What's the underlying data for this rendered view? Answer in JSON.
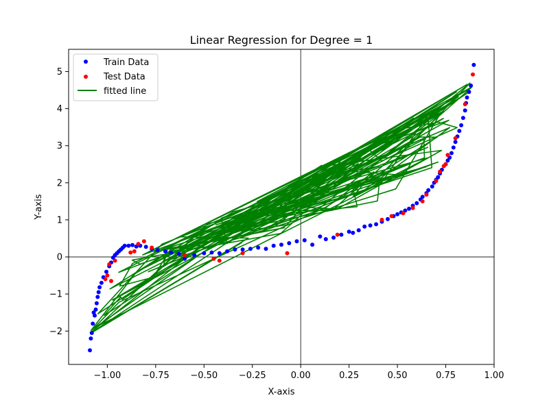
{
  "chart_data": {
    "type": "scatter",
    "title": "Linear Regression for Degree = 1",
    "xlabel": "X-axis",
    "ylabel": "Y-axis",
    "xlim": [
      -1.2,
      1.0
    ],
    "ylim": [
      -2.9,
      5.6
    ],
    "xticks": [
      -1.0,
      -0.75,
      -0.5,
      -0.25,
      0.0,
      0.25,
      0.5,
      0.75,
      1.0
    ],
    "xtick_labels": [
      "−1.00",
      "−0.75",
      "−0.50",
      "−0.25",
      "0.00",
      "0.25",
      "0.50",
      "0.75",
      "1.00"
    ],
    "yticks": [
      -2,
      -1,
      0,
      1,
      2,
      3,
      4,
      5
    ],
    "ytick_labels": [
      "−2",
      "−1",
      "0",
      "1",
      "2",
      "3",
      "4",
      "5"
    ],
    "grid": false,
    "reference_lines": {
      "x": 0,
      "y": 0
    },
    "legend": {
      "placement": "top-left",
      "entries": [
        "Train Data",
        "Test Data",
        "fitted line"
      ]
    },
    "series": [
      {
        "name": "Train Data",
        "kind": "scatter",
        "color": "#0000ff",
        "points": [
          [
            -1.09,
            -2.52
          ],
          [
            -1.085,
            -2.2
          ],
          [
            -1.08,
            -2.05
          ],
          [
            -1.075,
            -1.8
          ],
          [
            -1.07,
            -1.5
          ],
          [
            -1.065,
            -1.58
          ],
          [
            -1.06,
            -1.42
          ],
          [
            -1.055,
            -1.25
          ],
          [
            -1.05,
            -1.08
          ],
          [
            -1.045,
            -0.95
          ],
          [
            -1.04,
            -0.82
          ],
          [
            -1.03,
            -0.7
          ],
          [
            -1.02,
            -0.55
          ],
          [
            -1.005,
            -0.4
          ],
          [
            -0.99,
            -0.25
          ],
          [
            -0.98,
            -0.15
          ],
          [
            -0.97,
            -0.02
          ],
          [
            -0.96,
            0.05
          ],
          [
            -0.95,
            0.1
          ],
          [
            -0.94,
            0.15
          ],
          [
            -0.93,
            0.2
          ],
          [
            -0.92,
            0.25
          ],
          [
            -0.91,
            0.3
          ],
          [
            -0.89,
            0.3
          ],
          [
            -0.87,
            0.32
          ],
          [
            -0.85,
            0.28
          ],
          [
            -0.83,
            0.3
          ],
          [
            -0.8,
            0.27
          ],
          [
            -0.77,
            0.22
          ],
          [
            -0.74,
            0.18
          ],
          [
            -0.7,
            0.15
          ],
          [
            -0.67,
            0.12
          ],
          [
            -0.63,
            0.08
          ],
          [
            -0.6,
            -0.05
          ],
          [
            -0.55,
            0.05
          ],
          [
            -0.5,
            0.1
          ],
          [
            -0.46,
            0.12
          ],
          [
            -0.42,
            0.1
          ],
          [
            -0.38,
            0.15
          ],
          [
            -0.34,
            0.2
          ],
          [
            -0.3,
            0.2
          ],
          [
            -0.26,
            0.22
          ],
          [
            -0.22,
            0.25
          ],
          [
            -0.18,
            0.22
          ],
          [
            -0.14,
            0.3
          ],
          [
            -0.1,
            0.33
          ],
          [
            -0.06,
            0.37
          ],
          [
            -0.02,
            0.42
          ],
          [
            0.02,
            0.45
          ],
          [
            0.06,
            0.33
          ],
          [
            0.1,
            0.55
          ],
          [
            0.13,
            0.48
          ],
          [
            0.17,
            0.52
          ],
          [
            0.21,
            0.6
          ],
          [
            0.25,
            0.68
          ],
          [
            0.27,
            0.65
          ],
          [
            0.3,
            0.72
          ],
          [
            0.33,
            0.82
          ],
          [
            0.36,
            0.85
          ],
          [
            0.39,
            0.88
          ],
          [
            0.42,
            0.95
          ],
          [
            0.45,
            1.02
          ],
          [
            0.48,
            1.1
          ],
          [
            0.5,
            1.15
          ],
          [
            0.52,
            1.2
          ],
          [
            0.54,
            1.25
          ],
          [
            0.56,
            1.3
          ],
          [
            0.58,
            1.38
          ],
          [
            0.6,
            1.45
          ],
          [
            0.62,
            1.55
          ],
          [
            0.63,
            1.62
          ],
          [
            0.65,
            1.72
          ],
          [
            0.66,
            1.8
          ],
          [
            0.68,
            1.9
          ],
          [
            0.69,
            2.0
          ],
          [
            0.7,
            2.08
          ],
          [
            0.71,
            2.15
          ],
          [
            0.72,
            2.25
          ],
          [
            0.73,
            2.35
          ],
          [
            0.75,
            2.5
          ],
          [
            0.76,
            2.6
          ],
          [
            0.77,
            2.68
          ],
          [
            0.78,
            2.8
          ],
          [
            0.79,
            2.95
          ],
          [
            0.8,
            3.1
          ],
          [
            0.81,
            3.25
          ],
          [
            0.82,
            3.4
          ],
          [
            0.83,
            3.55
          ],
          [
            0.84,
            3.75
          ],
          [
            0.85,
            3.95
          ],
          [
            0.855,
            4.15
          ],
          [
            0.86,
            4.3
          ],
          [
            0.87,
            4.45
          ],
          [
            0.88,
            4.62
          ],
          [
            0.895,
            5.18
          ]
        ]
      },
      {
        "name": "Test Data",
        "kind": "scatter",
        "color": "#ff0000",
        "points": [
          [
            -1.01,
            -0.6
          ],
          [
            -1.0,
            -0.5
          ],
          [
            -0.99,
            -0.2
          ],
          [
            -0.98,
            -0.65
          ],
          [
            -0.96,
            -0.1
          ],
          [
            -0.88,
            0.12
          ],
          [
            -0.86,
            0.15
          ],
          [
            -0.84,
            0.35
          ],
          [
            -0.81,
            0.42
          ],
          [
            -0.77,
            0.25
          ],
          [
            -0.6,
            0.05
          ],
          [
            -0.45,
            -0.05
          ],
          [
            -0.42,
            -0.1
          ],
          [
            -0.3,
            0.1
          ],
          [
            -0.07,
            0.1
          ],
          [
            0.19,
            0.6
          ],
          [
            0.42,
            1.0
          ],
          [
            0.47,
            1.1
          ],
          [
            0.53,
            1.18
          ],
          [
            0.58,
            1.32
          ],
          [
            0.63,
            1.5
          ],
          [
            0.65,
            1.68
          ],
          [
            0.7,
            2.05
          ],
          [
            0.72,
            2.3
          ],
          [
            0.74,
            2.45
          ],
          [
            0.75,
            2.5
          ],
          [
            0.76,
            2.75
          ],
          [
            0.8,
            3.2
          ],
          [
            0.85,
            4.12
          ],
          [
            0.89,
            4.92
          ]
        ]
      },
      {
        "name": "fitted line",
        "kind": "line",
        "color": "#008000",
        "description": "Degree-1 model drawn as a polyline through unsorted x values; bounded by endpoints near (-1.09, -2.1) and (0.89, 4.75)",
        "envelope_upper": [
          [
            -1.09,
            -2.05
          ],
          [
            -0.95,
            -0.2
          ],
          [
            -0.5,
            0.9
          ],
          [
            0.0,
            2.3
          ],
          [
            0.5,
            3.5
          ],
          [
            0.89,
            4.75
          ]
        ],
        "envelope_lower": [
          [
            -1.09,
            -2.1
          ],
          [
            -0.6,
            -0.1
          ],
          [
            0.0,
            0.3
          ],
          [
            0.5,
            1.2
          ],
          [
            0.75,
            2.2
          ],
          [
            0.89,
            4.6
          ]
        ]
      }
    ]
  }
}
